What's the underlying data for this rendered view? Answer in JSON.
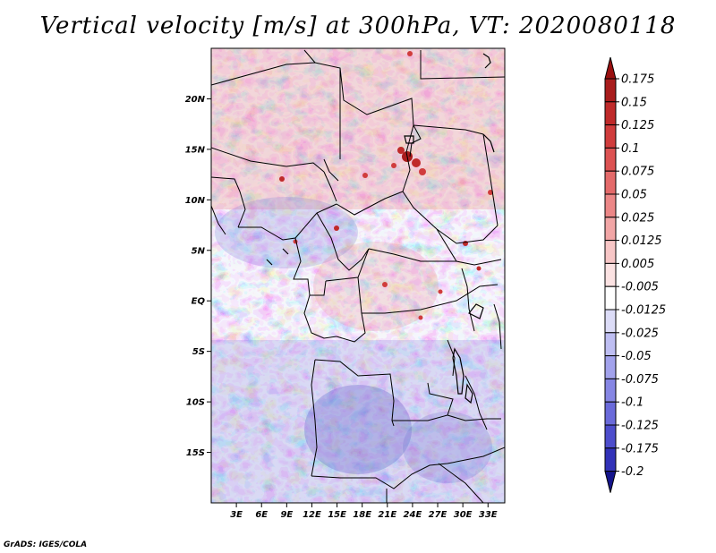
{
  "title": "Vertical velocity [m/s] at 300hPa, VT: 2020080118",
  "credit": "GrADS: IGES/COLA",
  "map": {
    "lon_range": [
      0,
      35
    ],
    "lat_range": [
      -20,
      25
    ],
    "lat_ticks": [
      {
        "value": 20,
        "label": "20N"
      },
      {
        "value": 15,
        "label": "15N"
      },
      {
        "value": 10,
        "label": "10N"
      },
      {
        "value": 5,
        "label": "5N"
      },
      {
        "value": 0,
        "label": "EQ"
      },
      {
        "value": -5,
        "label": "5S"
      },
      {
        "value": -10,
        "label": "10S"
      },
      {
        "value": -15,
        "label": "15S"
      }
    ],
    "lon_ticks": [
      {
        "value": 3,
        "label": "3E"
      },
      {
        "value": 6,
        "label": "6E"
      },
      {
        "value": 9,
        "label": "9E"
      },
      {
        "value": 12,
        "label": "12E"
      },
      {
        "value": 15,
        "label": "15E"
      },
      {
        "value": 18,
        "label": "18E"
      },
      {
        "value": 21,
        "label": "21E"
      },
      {
        "value": 24,
        "label": "24E"
      },
      {
        "value": 27,
        "label": "27E"
      },
      {
        "value": 30,
        "label": "30E"
      },
      {
        "value": 33,
        "label": "33E"
      }
    ]
  },
  "colorbar": {
    "levels": [
      {
        "label": "0.175",
        "color": "#a81c1c"
      },
      {
        "label": "0.15",
        "color": "#bf2a2a"
      },
      {
        "label": "0.125",
        "color": "#d03c3c"
      },
      {
        "label": "0.1",
        "color": "#dc5252"
      },
      {
        "label": "0.075",
        "color": "#e46a6a"
      },
      {
        "label": "0.05",
        "color": "#ec8787"
      },
      {
        "label": "0.025",
        "color": "#f2a6a6"
      },
      {
        "label": "0.0125",
        "color": "#f7c6c6"
      },
      {
        "label": "0.005",
        "color": "#fbe2e2"
      },
      {
        "label": "-0.005",
        "color": "#ffffff"
      },
      {
        "label": "-0.0125",
        "color": "#dcdcf7"
      },
      {
        "label": "-0.025",
        "color": "#bebef2"
      },
      {
        "label": "-0.05",
        "color": "#a2a2ec"
      },
      {
        "label": "-0.075",
        "color": "#8686e4"
      },
      {
        "label": "-0.1",
        "color": "#6a6ada"
      },
      {
        "label": "-0.125",
        "color": "#4d4dcc"
      },
      {
        "label": "-0.175",
        "color": "#3232b8"
      },
      {
        "label": "-0.2",
        "color": "#1e1ea0"
      }
    ],
    "top_color": "#9a1010",
    "bottom_color": "#14148c"
  }
}
